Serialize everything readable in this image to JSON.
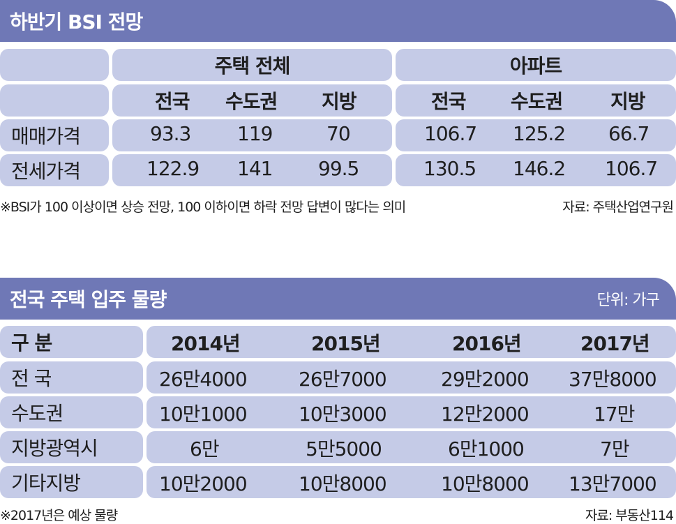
{
  "bsi": {
    "title": "하반기 BSI 전망",
    "groups": [
      "주택 전체",
      "아파트"
    ],
    "regions": [
      "전국",
      "수도권",
      "지방",
      "전국",
      "수도권",
      "지방"
    ],
    "rows": [
      {
        "label": "매매가격",
        "values": [
          "93.3",
          "119",
          "70",
          "106.7",
          "125.2",
          "66.7"
        ]
      },
      {
        "label": "전세가격",
        "values": [
          "122.9",
          "141",
          "99.5",
          "130.5",
          "146.2",
          "106.7"
        ]
      }
    ],
    "footnote": "※BSI가 100 이상이면 상승 전망, 100 이하이면 하락 전망 답변이 많다는 의미",
    "source": "자료: 주택산업연구원"
  },
  "supply": {
    "title": "전국 주택 입주 물량",
    "unit": "단위: 가구",
    "header": [
      "구 분",
      "2014년",
      "2015년",
      "2016년",
      "2017년"
    ],
    "rows": [
      {
        "label": "전 국",
        "values": [
          "26만4000",
          "26만7000",
          "29만2000",
          "37만8000"
        ]
      },
      {
        "label": "수도권",
        "values": [
          "10만1000",
          "10만3000",
          "12만2000",
          "17만"
        ]
      },
      {
        "label": "지방광역시",
        "values": [
          "6만",
          "5만5000",
          "6만1000",
          "7만"
        ]
      },
      {
        "label": "기타지방",
        "values": [
          "10만2000",
          "10만8000",
          "10만8000",
          "13만7000"
        ]
      }
    ],
    "footnote": "※2017년은 예상 물량",
    "source": "자료: 부동산114"
  }
}
